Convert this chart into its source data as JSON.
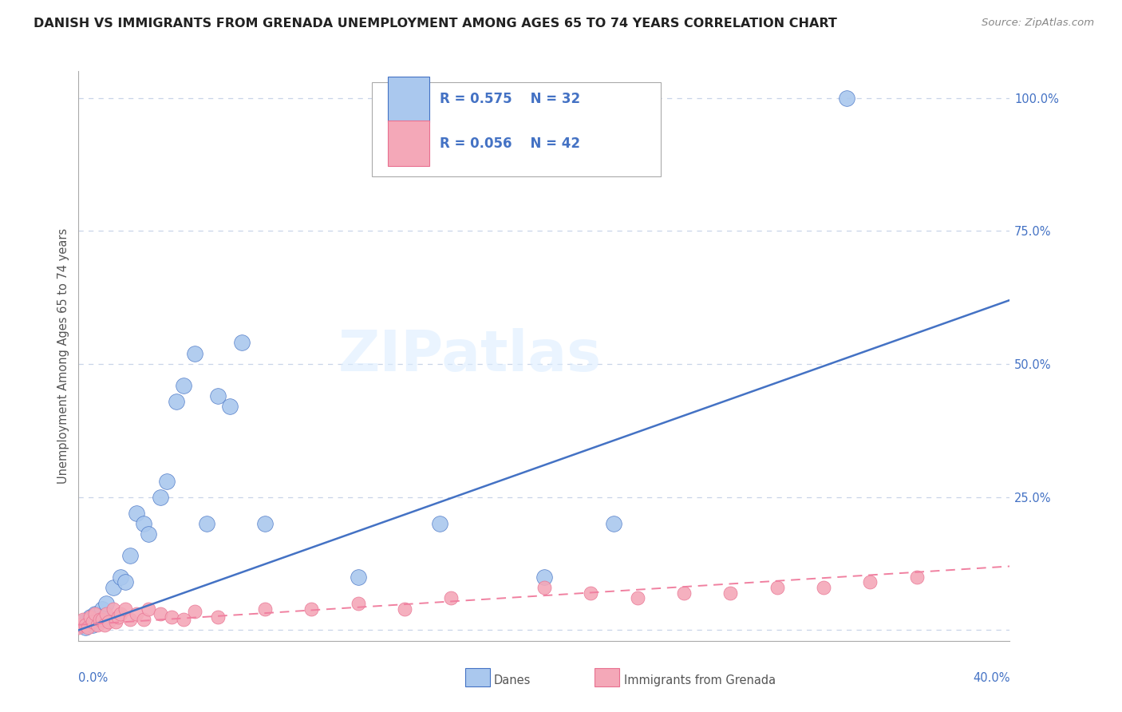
{
  "title": "DANISH VS IMMIGRANTS FROM GRENADA UNEMPLOYMENT AMONG AGES 65 TO 74 YEARS CORRELATION CHART",
  "source_text": "Source: ZipAtlas.com",
  "ylabel": "Unemployment Among Ages 65 to 74 years",
  "xlim": [
    0.0,
    0.4
  ],
  "ylim": [
    -0.02,
    1.05
  ],
  "yticks": [
    0.0,
    0.25,
    0.5,
    0.75,
    1.0
  ],
  "ytick_labels": [
    "",
    "25.0%",
    "50.0%",
    "75.0%",
    "100.0%"
  ],
  "grid_color": "#c8d4e8",
  "background_color": "#ffffff",
  "danes_color": "#aac8ee",
  "grenada_color": "#f4a8b8",
  "danes_line_color": "#4472c4",
  "grenada_line_color": "#f080a0",
  "legend_r_danes": "R = 0.575",
  "legend_n_danes": "N = 32",
  "legend_r_grenada": "R = 0.056",
  "legend_n_grenada": "N = 42",
  "danes_label": "Danes",
  "grenada_label": "Immigrants from Grenada",
  "watermark": "ZIPatlas",
  "danes_x": [
    0.001,
    0.002,
    0.003,
    0.004,
    0.005,
    0.006,
    0.007,
    0.008,
    0.01,
    0.012,
    0.015,
    0.018,
    0.02,
    0.022,
    0.025,
    0.028,
    0.03,
    0.035,
    0.038,
    0.042,
    0.045,
    0.05,
    0.055,
    0.06,
    0.065,
    0.07,
    0.08,
    0.12,
    0.155,
    0.2,
    0.23,
    0.33
  ],
  "danes_y": [
    0.01,
    0.015,
    0.005,
    0.02,
    0.025,
    0.01,
    0.03,
    0.02,
    0.04,
    0.05,
    0.08,
    0.1,
    0.09,
    0.14,
    0.22,
    0.2,
    0.18,
    0.25,
    0.28,
    0.43,
    0.46,
    0.52,
    0.2,
    0.44,
    0.42,
    0.54,
    0.2,
    0.1,
    0.2,
    0.1,
    0.2,
    1.0
  ],
  "grenada_x": [
    0.0,
    0.001,
    0.002,
    0.003,
    0.004,
    0.005,
    0.006,
    0.007,
    0.008,
    0.009,
    0.01,
    0.011,
    0.012,
    0.013,
    0.015,
    0.016,
    0.017,
    0.018,
    0.02,
    0.022,
    0.025,
    0.028,
    0.03,
    0.035,
    0.04,
    0.045,
    0.05,
    0.06,
    0.08,
    0.1,
    0.12,
    0.14,
    0.16,
    0.2,
    0.22,
    0.24,
    0.26,
    0.28,
    0.3,
    0.32,
    0.34,
    0.36
  ],
  "grenada_y": [
    0.005,
    0.01,
    0.02,
    0.01,
    0.005,
    0.025,
    0.015,
    0.03,
    0.01,
    0.02,
    0.02,
    0.01,
    0.03,
    0.015,
    0.04,
    0.015,
    0.025,
    0.03,
    0.04,
    0.02,
    0.03,
    0.02,
    0.04,
    0.03,
    0.025,
    0.02,
    0.035,
    0.025,
    0.04,
    0.04,
    0.05,
    0.04,
    0.06,
    0.08,
    0.07,
    0.06,
    0.07,
    0.07,
    0.08,
    0.08,
    0.09,
    0.1
  ],
  "danes_trendline_x": [
    0.0,
    0.4
  ],
  "danes_trendline_y": [
    0.0,
    0.62
  ],
  "grenada_trendline_x": [
    0.0,
    0.4
  ],
  "grenada_trendline_y": [
    0.01,
    0.12
  ]
}
